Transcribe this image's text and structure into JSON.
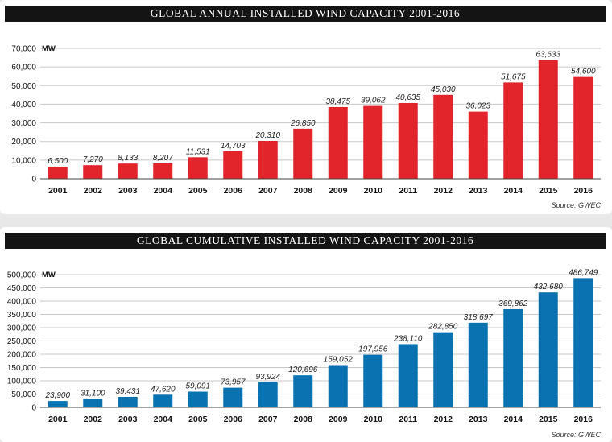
{
  "charts": [
    {
      "title": "GLOBAL ANNUAL INSTALLED WIND CAPACITY 2001-2016",
      "source": "Source: GWEC",
      "unit": "MW",
      "color": "#e2242b",
      "yticks": [
        "0",
        "10,000",
        "20,000",
        "30,000",
        "40,000",
        "50,000",
        "60,000",
        "70,000"
      ],
      "value_labels": [
        "6,500",
        "7,270",
        "8,133",
        "8,207",
        "11,531",
        "14,703",
        "20,310",
        "26,850",
        "38,475",
        "39,062",
        "40,635",
        "45,030",
        "36,023",
        "51,675",
        "63,633",
        "54,600"
      ],
      "categories": [
        "2001",
        "2002",
        "2003",
        "2004",
        "2005",
        "2006",
        "2007",
        "2008",
        "2009",
        "2010",
        "2011",
        "2012",
        "2013",
        "2014",
        "2015",
        "2016"
      ]
    },
    {
      "title": "GLOBAL CUMULATIVE INSTALLED WIND CAPACITY 2001-2016",
      "source": "Source: GWEC",
      "unit": "MW",
      "color": "#0a72b0",
      "yticks": [
        "0",
        "50,000",
        "100,000",
        "150,000",
        "200,000",
        "250,000",
        "300,000",
        "350,000",
        "400,000",
        "450,000",
        "500,000"
      ],
      "value_labels": [
        "23,900",
        "31,100",
        "39,431",
        "47,620",
        "59,091",
        "73,957",
        "93,924",
        "120,696",
        "159,052",
        "197,956",
        "238,110",
        "282,850",
        "318,697",
        "369,862",
        "432,680",
        "486,749"
      ],
      "categories": [
        "2001",
        "2002",
        "2003",
        "2004",
        "2005",
        "2006",
        "2007",
        "2008",
        "2009",
        "2010",
        "2011",
        "2012",
        "2013",
        "2014",
        "2015",
        "2016"
      ]
    }
  ],
  "chart_data": [
    {
      "type": "bar",
      "title": "GLOBAL ANNUAL INSTALLED WIND CAPACITY 2001-2016",
      "ylabel": "MW",
      "categories": [
        "2001",
        "2002",
        "2003",
        "2004",
        "2005",
        "2006",
        "2007",
        "2008",
        "2009",
        "2010",
        "2011",
        "2012",
        "2013",
        "2014",
        "2015",
        "2016"
      ],
      "values": [
        6500,
        7270,
        8133,
        8207,
        11531,
        14703,
        20310,
        26850,
        38475,
        39062,
        40635,
        45030,
        36023,
        51675,
        63633,
        54600
      ],
      "ylim": [
        0,
        70000
      ],
      "grid": true
    },
    {
      "type": "bar",
      "title": "GLOBAL CUMULATIVE INSTALLED WIND CAPACITY 2001-2016",
      "ylabel": "MW",
      "categories": [
        "2001",
        "2002",
        "2003",
        "2004",
        "2005",
        "2006",
        "2007",
        "2008",
        "2009",
        "2010",
        "2011",
        "2012",
        "2013",
        "2014",
        "2015",
        "2016"
      ],
      "values": [
        23900,
        31100,
        39431,
        47620,
        59091,
        73957,
        93924,
        120696,
        159052,
        197956,
        238110,
        282850,
        318697,
        369862,
        432680,
        486749
      ],
      "ylim": [
        0,
        500000
      ],
      "grid": true
    }
  ]
}
